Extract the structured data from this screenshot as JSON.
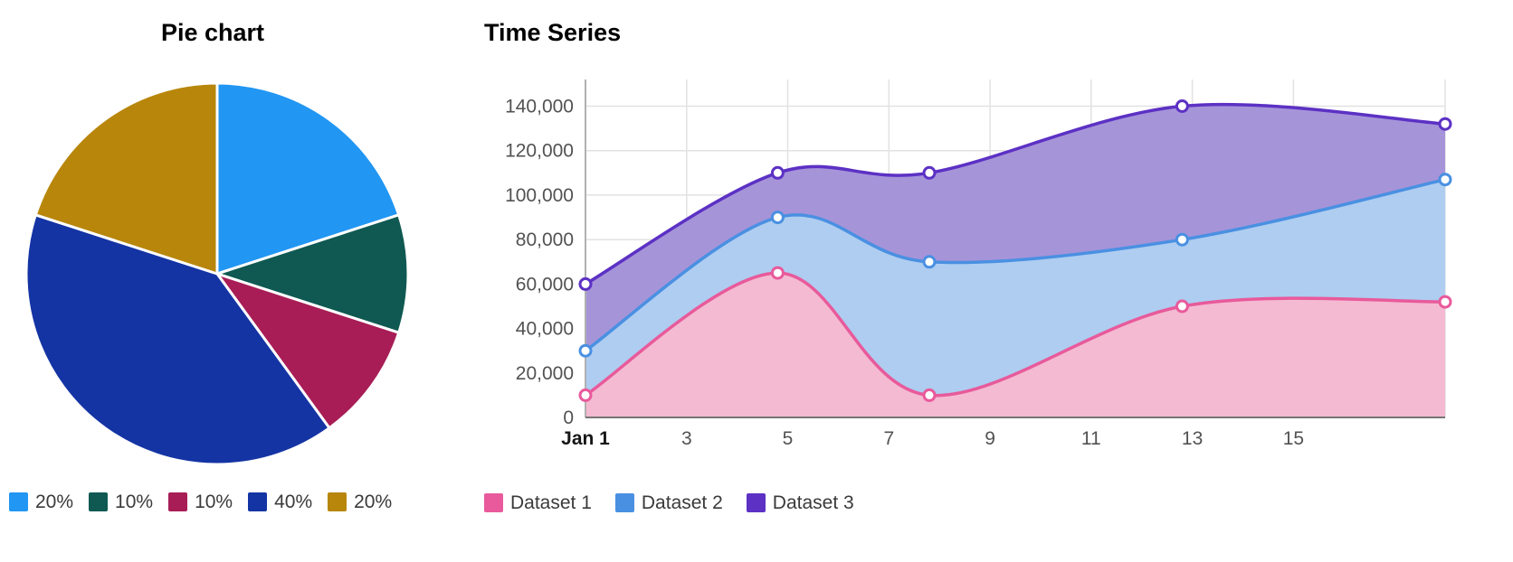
{
  "page": {
    "background": "#ffffff"
  },
  "chart_data": [
    {
      "type": "pie",
      "title": "Pie chart",
      "start_angle_deg": 0,
      "direction": "clockwise",
      "legend_position": "bottom",
      "slices": [
        {
          "label": "20%",
          "value": 20,
          "color": "#2196f3"
        },
        {
          "label": "10%",
          "value": 10,
          "color": "#0f5952"
        },
        {
          "label": "10%",
          "value": 10,
          "color": "#a81d56"
        },
        {
          "label": "40%",
          "value": 40,
          "color": "#1434a4"
        },
        {
          "label": "20%",
          "value": 20,
          "color": "#b8860b"
        }
      ]
    },
    {
      "type": "area",
      "title": "Time Series",
      "curve": "smooth",
      "markers": "hollow-circle",
      "grid": true,
      "legend_position": "bottom",
      "x": [
        1,
        4.8,
        7.8,
        12.8,
        18
      ],
      "x_axis": {
        "range": [
          1,
          18
        ],
        "ticks": [
          {
            "value": 1,
            "label": "Jan 1",
            "bold": true
          },
          {
            "value": 3,
            "label": "3"
          },
          {
            "value": 5,
            "label": "5"
          },
          {
            "value": 7,
            "label": "7"
          },
          {
            "value": 9,
            "label": "9"
          },
          {
            "value": 11,
            "label": "11"
          },
          {
            "value": 13,
            "label": "13"
          },
          {
            "value": 15,
            "label": "15"
          }
        ]
      },
      "y_axis": {
        "range": [
          0,
          152000
        ],
        "ticks": [
          {
            "value": 0,
            "label": "0"
          },
          {
            "value": 20000,
            "label": "20,000"
          },
          {
            "value": 40000,
            "label": "40,000"
          },
          {
            "value": 60000,
            "label": "60,000"
          },
          {
            "value": 80000,
            "label": "80,000"
          },
          {
            "value": 100000,
            "label": "100,000"
          },
          {
            "value": 120000,
            "label": "120,000"
          },
          {
            "value": 140000,
            "label": "140,000"
          }
        ]
      },
      "series": [
        {
          "name": "Dataset 1",
          "color": "#e85a9b",
          "fill": "#f4bad1",
          "values": [
            10000,
            65000,
            10000,
            50000,
            52000
          ]
        },
        {
          "name": "Dataset 2",
          "color": "#4a90e2",
          "fill": "#aecdf0",
          "values": [
            30000,
            90000,
            70000,
            80000,
            107000
          ]
        },
        {
          "name": "Dataset 3",
          "color": "#5c31c4",
          "fill": "#a694d9",
          "values": [
            60000,
            110000,
            110000,
            140000,
            132000
          ]
        }
      ]
    }
  ]
}
